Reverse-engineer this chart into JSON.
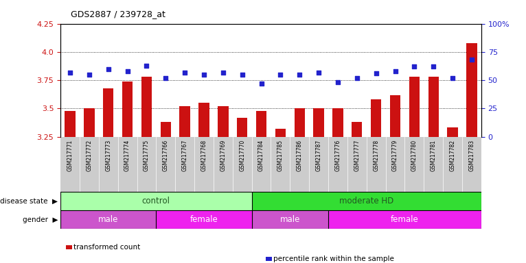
{
  "title": "GDS2887 / 239728_at",
  "samples": [
    "GSM217771",
    "GSM217772",
    "GSM217773",
    "GSM217774",
    "GSM217775",
    "GSM217766",
    "GSM217767",
    "GSM217768",
    "GSM217769",
    "GSM217770",
    "GSM217784",
    "GSM217785",
    "GSM217786",
    "GSM217787",
    "GSM217776",
    "GSM217777",
    "GSM217778",
    "GSM217779",
    "GSM217780",
    "GSM217781",
    "GSM217782",
    "GSM217783"
  ],
  "transformed_count": [
    3.48,
    3.5,
    3.68,
    3.74,
    3.78,
    3.38,
    3.52,
    3.55,
    3.52,
    3.42,
    3.48,
    3.32,
    3.5,
    3.5,
    3.5,
    3.38,
    3.58,
    3.62,
    3.78,
    3.78,
    3.33,
    4.08
  ],
  "percentile_rank": [
    57,
    55,
    60,
    58,
    63,
    52,
    57,
    55,
    57,
    55,
    47,
    55,
    55,
    57,
    48,
    52,
    56,
    58,
    62,
    62,
    52,
    68
  ],
  "ylim_left": [
    3.25,
    4.25
  ],
  "ylim_right": [
    0,
    100
  ],
  "yticks_left": [
    3.25,
    3.5,
    3.75,
    4.0,
    4.25
  ],
  "yticks_right": [
    0,
    25,
    50,
    75,
    100
  ],
  "yticklabels_right": [
    "0",
    "25",
    "50",
    "75",
    "100%"
  ],
  "bar_color": "#cc1111",
  "dot_color": "#2222cc",
  "grid_lines": [
    3.5,
    3.75,
    4.0
  ],
  "disease_state_groups": [
    {
      "label": "control",
      "start": 0,
      "end": 10,
      "color": "#aaffaa"
    },
    {
      "label": "moderate HD",
      "start": 10,
      "end": 22,
      "color": "#33dd33"
    }
  ],
  "gender_groups": [
    {
      "label": "male",
      "start": 0,
      "end": 5,
      "color": "#cc55cc"
    },
    {
      "label": "female",
      "start": 5,
      "end": 10,
      "color": "#ee22ee"
    },
    {
      "label": "male",
      "start": 10,
      "end": 14,
      "color": "#cc55cc"
    },
    {
      "label": "female",
      "start": 14,
      "end": 22,
      "color": "#ee22ee"
    }
  ],
  "disease_label": "disease state",
  "gender_label": "gender",
  "legend": [
    {
      "label": "transformed count",
      "color": "#cc1111",
      "marker": "s"
    },
    {
      "label": "percentile rank within the sample",
      "color": "#2222cc",
      "marker": "s"
    }
  ],
  "xtick_bg": "#cccccc",
  "bar_width": 0.55
}
